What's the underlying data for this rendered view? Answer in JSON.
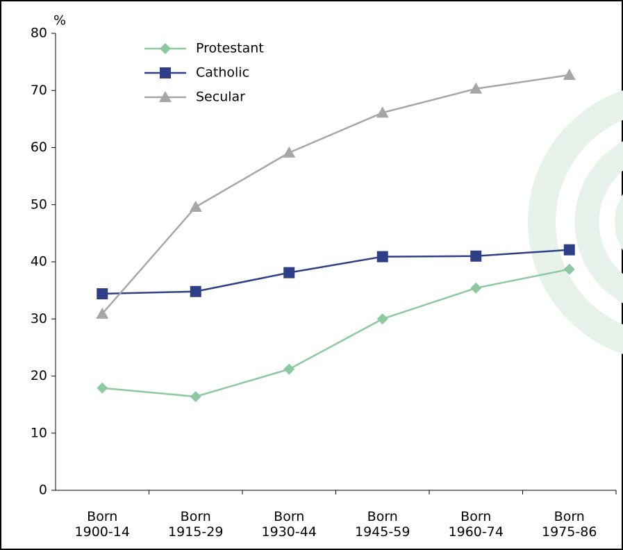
{
  "chart_data": {
    "type": "line",
    "y_label": "%",
    "categories": [
      "Born\n1900-14",
      "Born\n1915-29",
      "Born\n1930-44",
      "Born\n1945-59",
      "Born\n1960-74",
      "Born\n1975-86"
    ],
    "series": [
      {
        "name": "Protestant",
        "color": "#8dc8a0",
        "marker": "diamond",
        "values": [
          17.9,
          16.4,
          21.2,
          30.0,
          35.4,
          38.7
        ]
      },
      {
        "name": "Catholic",
        "color": "#2e3f87",
        "marker": "square",
        "values": [
          34.4,
          34.8,
          38.1,
          40.9,
          41.0,
          42.1
        ]
      },
      {
        "name": "Secular",
        "color": "#a6a6a6",
        "marker": "triangle",
        "values": [
          30.9,
          49.6,
          59.1,
          66.1,
          70.3,
          72.7
        ]
      }
    ],
    "ylim": [
      0,
      80
    ],
    "yticks": [
      0,
      10,
      20,
      30,
      40,
      50,
      60,
      70,
      80
    ],
    "grid": false
  }
}
